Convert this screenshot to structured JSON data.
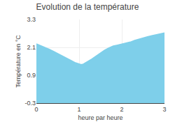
{
  "chart_data": {
    "type": "area",
    "title": "Evolution de la température",
    "x_label": "heure par heure",
    "y_label": "Température en °C",
    "x": [
      0,
      0.1,
      0.2,
      0.3,
      0.4,
      0.5,
      0.6,
      0.7,
      0.8,
      0.9,
      1.0,
      1.05,
      1.1,
      1.2,
      1.3,
      1.4,
      1.5,
      1.6,
      1.7,
      1.8,
      1.9,
      2.0,
      2.1,
      2.2,
      2.3,
      2.4,
      2.5,
      2.6,
      2.7,
      2.8,
      2.9,
      3.0
    ],
    "values": [
      2.25,
      2.18,
      2.1,
      2.02,
      1.93,
      1.84,
      1.75,
      1.65,
      1.55,
      1.45,
      1.38,
      1.36,
      1.38,
      1.48,
      1.6,
      1.73,
      1.86,
      1.98,
      2.08,
      2.16,
      2.2,
      2.24,
      2.28,
      2.33,
      2.4,
      2.46,
      2.52,
      2.56,
      2.6,
      2.64,
      2.68,
      2.72
    ],
    "color": "#7ecfea",
    "xlim": [
      0,
      3
    ],
    "xticks": [
      0,
      1,
      2,
      3
    ],
    "ylim": [
      -0.3,
      3.3
    ],
    "yticks": [
      -0.3,
      0.9,
      2.1,
      3.3
    ],
    "grid": true
  }
}
